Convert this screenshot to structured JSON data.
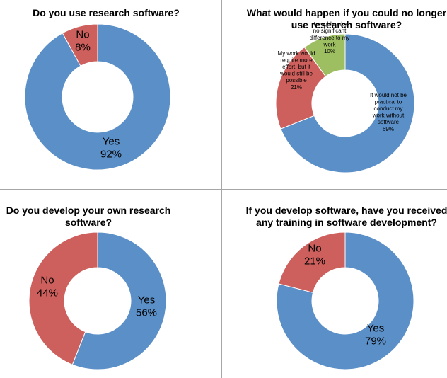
{
  "chart_data": [
    {
      "type": "pie",
      "title": "Do you use research software?",
      "colors": [
        "#5b8fc7",
        "#cd5f5c"
      ],
      "slices": [
        {
          "label": "Yes",
          "value": 92
        },
        {
          "label": "No",
          "value": 8
        }
      ],
      "value_labels": [
        "92%",
        "8%"
      ]
    },
    {
      "type": "pie",
      "title": "What would happen if you could no longer use research software?",
      "colors": [
        "#5b8fc7",
        "#cd5f5c",
        "#9dbf61"
      ],
      "slices": [
        {
          "label": "It would not be practical to conduct my work without software",
          "value": 69
        },
        {
          "label": "My work would require more effort, but it would still be possible",
          "value": 21
        },
        {
          "label": "It would make no significant difference to my work",
          "value": 10
        }
      ],
      "value_labels": [
        "69%",
        "21%",
        "10%"
      ]
    },
    {
      "type": "pie",
      "title": "Do you develop your own research software?",
      "colors": [
        "#5b8fc7",
        "#cd5f5c"
      ],
      "slices": [
        {
          "label": "Yes",
          "value": 56
        },
        {
          "label": "No",
          "value": 44
        }
      ],
      "value_labels": [
        "56%",
        "44%"
      ]
    },
    {
      "type": "pie",
      "title": "If you develop software, have you received any training in software development?",
      "colors": [
        "#5b8fc7",
        "#cd5f5c"
      ],
      "slices": [
        {
          "label": "Yes",
          "value": 79
        },
        {
          "label": "No",
          "value": 21
        }
      ],
      "value_labels": [
        "79%",
        "21%"
      ]
    }
  ]
}
